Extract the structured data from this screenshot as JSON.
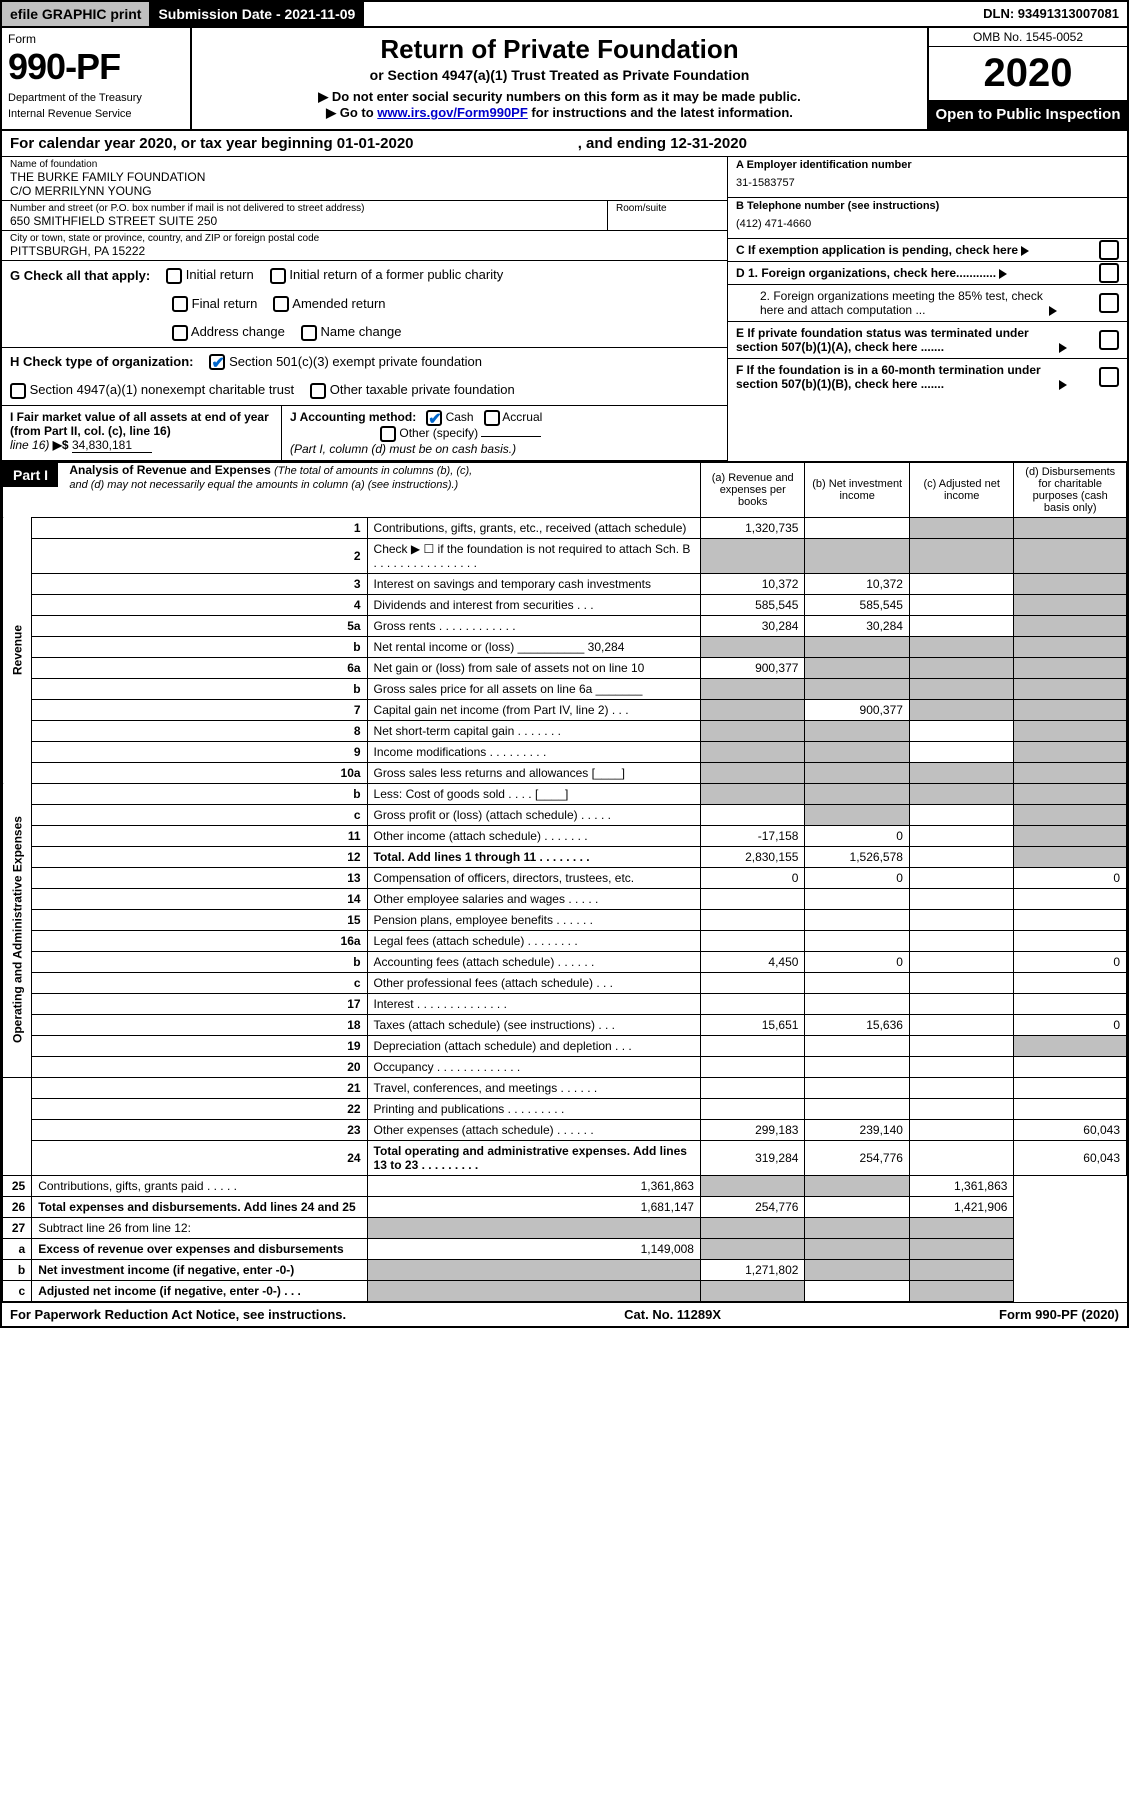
{
  "topbar": {
    "efile": "efile GRAPHIC print",
    "submission": "Submission Date - 2021-11-09",
    "dln": "DLN: 93491313007081"
  },
  "header": {
    "form_label": "Form",
    "form_number": "990-PF",
    "dept1": "Department of the Treasury",
    "dept2": "Internal Revenue Service",
    "title": "Return of Private Foundation",
    "subtitle": "or Section 4947(a)(1) Trust Treated as Private Foundation",
    "note1": "▶ Do not enter social security numbers on this form as it may be made public.",
    "note2_pre": "▶ Go to ",
    "note2_link": "www.irs.gov/Form990PF",
    "note2_post": " for instructions and the latest information.",
    "omb": "OMB No. 1545-0052",
    "year": "2020",
    "open": "Open to Public Inspection"
  },
  "calyear": "For calendar year 2020, or tax year beginning 01-01-2020",
  "calyear_end": ", and ending 12-31-2020",
  "info": {
    "name_lbl": "Name of foundation",
    "name1": "THE BURKE FAMILY FOUNDATION",
    "name2": "C/O MERRILYNN YOUNG",
    "addr_lbl": "Number and street (or P.O. box number if mail is not delivered to street address)",
    "addr": "650 SMITHFIELD STREET SUITE 250",
    "room_lbl": "Room/suite",
    "city_lbl": "City or town, state or province, country, and ZIP or foreign postal code",
    "city": "PITTSBURGH, PA  15222",
    "ein_lbl": "A Employer identification number",
    "ein": "31-1583757",
    "phone_lbl": "B Telephone number (see instructions)",
    "phone": "(412) 471-4660",
    "c_lbl": "C If exemption application is pending, check here",
    "d1": "D 1. Foreign organizations, check here............",
    "d2": "2. Foreign organizations meeting the 85% test, check here and attach computation ...",
    "e_lbl": "E  If private foundation status was terminated under section 507(b)(1)(A), check here .......",
    "f_lbl": "F  If the foundation is in a 60-month termination under section 507(b)(1)(B), check here .......",
    "g_lbl": "G Check all that apply:",
    "g_opts": [
      "Initial return",
      "Initial return of a former public charity",
      "Final return",
      "Amended return",
      "Address change",
      "Name change"
    ],
    "h_lbl": "H Check type of organization:",
    "h1": "Section 501(c)(3) exempt private foundation",
    "h2": "Section 4947(a)(1) nonexempt charitable trust",
    "h3": "Other taxable private foundation",
    "i_lbl": "I Fair market value of all assets at end of year (from Part II, col. (c), line 16)",
    "i_val": "34,830,181",
    "j_lbl": "J Accounting method:",
    "j_cash": "Cash",
    "j_accrual": "Accrual",
    "j_other": "Other (specify)",
    "j_note": "(Part I, column (d) must be on cash basis.)"
  },
  "part1": {
    "label": "Part I",
    "title": "Analysis of Revenue and Expenses",
    "title_note": "(The total of amounts in columns (b), (c), and (d) may not necessarily equal the amounts in column (a) (see instructions).)",
    "col_a": "(a)  Revenue and expenses per books",
    "col_b": "(b)  Net investment income",
    "col_c": "(c)  Adjusted net income",
    "col_d": "(d)  Disbursements for charitable purposes (cash basis only)"
  },
  "side": {
    "revenue": "Revenue",
    "expenses": "Operating and Administrative Expenses"
  },
  "rows": [
    {
      "n": "1",
      "d": "Contributions, gifts, grants, etc., received (attach schedule)",
      "a": "1,320,735",
      "b": "",
      "c": "shade",
      "dd": "shade"
    },
    {
      "n": "2",
      "d": "Check ▶ ☐ if the foundation is not required to attach Sch. B    .  .  .  .  .  .  .  .  .  .  .  .  .  .  .  .",
      "a": "shade",
      "b": "shade",
      "c": "shade",
      "dd": "shade"
    },
    {
      "n": "3",
      "d": "Interest on savings and temporary cash investments",
      "a": "10,372",
      "b": "10,372",
      "c": "",
      "dd": "shade"
    },
    {
      "n": "4",
      "d": "Dividends and interest from securities    .   .   .",
      "a": "585,545",
      "b": "585,545",
      "c": "",
      "dd": "shade"
    },
    {
      "n": "5a",
      "d": "Gross rents     .   .   .   .   .   .   .   .   .   .   .   .",
      "a": "30,284",
      "b": "30,284",
      "c": "",
      "dd": "shade"
    },
    {
      "n": "b",
      "d": "Net rental income or (loss) __________ 30,284",
      "a": "shade",
      "b": "shade",
      "c": "shade",
      "dd": "shade"
    },
    {
      "n": "6a",
      "d": "Net gain or (loss) from sale of assets not on line 10",
      "a": "900,377",
      "b": "shade",
      "c": "shade",
      "dd": "shade"
    },
    {
      "n": "b",
      "d": "Gross sales price for all assets on line 6a _______",
      "a": "shade",
      "b": "shade",
      "c": "shade",
      "dd": "shade"
    },
    {
      "n": "7",
      "d": "Capital gain net income (from Part IV, line 2)   .   .   .",
      "a": "shade",
      "b": "900,377",
      "c": "shade",
      "dd": "shade"
    },
    {
      "n": "8",
      "d": "Net short-term capital gain  .   .   .   .   .   .   .",
      "a": "shade",
      "b": "shade",
      "c": "",
      "dd": "shade"
    },
    {
      "n": "9",
      "d": "Income modifications  .   .   .   .   .   .   .   .   .",
      "a": "shade",
      "b": "shade",
      "c": "",
      "dd": "shade"
    },
    {
      "n": "10a",
      "d": "Gross sales less returns and allowances  [____]",
      "a": "shade",
      "b": "shade",
      "c": "shade",
      "dd": "shade"
    },
    {
      "n": "b",
      "d": "Less: Cost of goods sold     .   .   .   .   [____]",
      "a": "shade",
      "b": "shade",
      "c": "shade",
      "dd": "shade"
    },
    {
      "n": "c",
      "d": "Gross profit or (loss) (attach schedule)    .   .   .   .   .",
      "a": "",
      "b": "shade",
      "c": "",
      "dd": "shade"
    },
    {
      "n": "11",
      "d": "Other income (attach schedule)    .   .   .   .   .   .   .",
      "a": "-17,158",
      "b": "0",
      "c": "",
      "dd": "shade"
    },
    {
      "n": "12",
      "d": "Total. Add lines 1 through 11   .   .   .   .   .   .   .   .",
      "a": "2,830,155",
      "b": "1,526,578",
      "c": "",
      "dd": "shade",
      "bold": true
    },
    {
      "n": "13",
      "d": "Compensation of officers, directors, trustees, etc.",
      "a": "0",
      "b": "0",
      "c": "",
      "dd": "0"
    },
    {
      "n": "14",
      "d": "Other employee salaries and wages   .   .   .   .   .",
      "a": "",
      "b": "",
      "c": "",
      "dd": ""
    },
    {
      "n": "15",
      "d": "Pension plans, employee benefits  .   .   .   .   .   .",
      "a": "",
      "b": "",
      "c": "",
      "dd": ""
    },
    {
      "n": "16a",
      "d": "Legal fees (attach schedule) .   .   .   .   .   .   .   .",
      "a": "",
      "b": "",
      "c": "",
      "dd": ""
    },
    {
      "n": "b",
      "d": "Accounting fees (attach schedule) .   .   .   .   .   .",
      "a": "4,450",
      "b": "0",
      "c": "",
      "dd": "0"
    },
    {
      "n": "c",
      "d": "Other professional fees (attach schedule)    .   .   .",
      "a": "",
      "b": "",
      "c": "",
      "dd": ""
    },
    {
      "n": "17",
      "d": "Interest .   .   .   .   .   .   .   .   .   .   .   .   .   .",
      "a": "",
      "b": "",
      "c": "",
      "dd": ""
    },
    {
      "n": "18",
      "d": "Taxes (attach schedule) (see instructions)    .   .   .",
      "a": "15,651",
      "b": "15,636",
      "c": "",
      "dd": "0"
    },
    {
      "n": "19",
      "d": "Depreciation (attach schedule) and depletion    .   .   .",
      "a": "",
      "b": "",
      "c": "",
      "dd": "shade"
    },
    {
      "n": "20",
      "d": "Occupancy .   .   .   .   .   .   .   .   .   .   .   .   .",
      "a": "",
      "b": "",
      "c": "",
      "dd": ""
    },
    {
      "n": "21",
      "d": "Travel, conferences, and meetings .   .   .   .   .   .",
      "a": "",
      "b": "",
      "c": "",
      "dd": ""
    },
    {
      "n": "22",
      "d": "Printing and publications .   .   .   .   .   .   .   .   .",
      "a": "",
      "b": "",
      "c": "",
      "dd": ""
    },
    {
      "n": "23",
      "d": "Other expenses (attach schedule) .   .   .   .   .   .",
      "a": "299,183",
      "b": "239,140",
      "c": "",
      "dd": "60,043"
    },
    {
      "n": "24",
      "d": "Total operating and administrative expenses. Add lines 13 to 23   .   .   .   .   .   .   .   .   .",
      "a": "319,284",
      "b": "254,776",
      "c": "",
      "dd": "60,043",
      "bold": true
    },
    {
      "n": "25",
      "d": "Contributions, gifts, grants paid    .   .   .   .   .",
      "a": "1,361,863",
      "b": "shade",
      "c": "shade",
      "dd": "1,361,863"
    },
    {
      "n": "26",
      "d": "Total expenses and disbursements. Add lines 24 and 25",
      "a": "1,681,147",
      "b": "254,776",
      "c": "",
      "dd": "1,421,906",
      "bold": true
    },
    {
      "n": "27",
      "d": "Subtract line 26 from line 12:",
      "a": "shade",
      "b": "shade",
      "c": "shade",
      "dd": "shade"
    },
    {
      "n": "a",
      "d": "Excess of revenue over expenses and disbursements",
      "a": "1,149,008",
      "b": "shade",
      "c": "shade",
      "dd": "shade",
      "bold": true
    },
    {
      "n": "b",
      "d": "Net investment income (if negative, enter -0-)",
      "a": "shade",
      "b": "1,271,802",
      "c": "shade",
      "dd": "shade",
      "bold": true
    },
    {
      "n": "c",
      "d": "Adjusted net income (if negative, enter -0-)   .   .   .",
      "a": "shade",
      "b": "shade",
      "c": "",
      "dd": "shade",
      "bold": true
    }
  ],
  "footer": {
    "left": "For Paperwork Reduction Act Notice, see instructions.",
    "mid": "Cat. No. 11289X",
    "right": "Form 990-PF (2020)"
  }
}
